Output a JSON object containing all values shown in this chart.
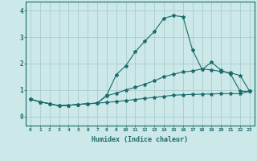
{
  "xlabel": "Humidex (Indice chaleur)",
  "bg_color": "#cce8e8",
  "grid_color": "#aacccc",
  "line_color": "#1a6b6b",
  "xlim": [
    -0.5,
    23.5
  ],
  "ylim": [
    -0.35,
    4.35
  ],
  "xticks": [
    0,
    1,
    2,
    3,
    4,
    5,
    6,
    7,
    8,
    9,
    10,
    11,
    12,
    13,
    14,
    15,
    16,
    17,
    18,
    19,
    20,
    21,
    22,
    23
  ],
  "yticks": [
    0,
    1,
    2,
    3,
    4
  ],
  "line1_x": [
    0,
    1,
    2,
    3,
    4,
    5,
    6,
    7,
    8,
    9,
    10,
    11,
    12,
    13,
    14,
    15,
    16,
    17,
    18,
    19,
    20,
    21,
    22,
    23
  ],
  "line1_y": [
    0.65,
    0.55,
    0.48,
    0.4,
    0.42,
    0.45,
    0.48,
    0.5,
    0.8,
    1.58,
    1.92,
    2.45,
    2.85,
    3.22,
    3.72,
    3.82,
    3.78,
    2.52,
    1.78,
    2.05,
    1.75,
    1.6,
    0.95,
    0.95
  ],
  "line2_x": [
    0,
    1,
    2,
    3,
    4,
    5,
    6,
    7,
    8,
    9,
    10,
    11,
    12,
    13,
    14,
    15,
    16,
    17,
    18,
    19,
    20,
    21,
    22,
    23
  ],
  "line2_y": [
    0.65,
    0.55,
    0.48,
    0.4,
    0.42,
    0.45,
    0.48,
    0.5,
    0.78,
    0.88,
    1.0,
    1.1,
    1.22,
    1.35,
    1.5,
    1.6,
    1.68,
    1.72,
    1.8,
    1.76,
    1.7,
    1.65,
    1.55,
    0.95
  ],
  "line3_x": [
    0,
    1,
    2,
    3,
    4,
    5,
    6,
    7,
    8,
    9,
    10,
    11,
    12,
    13,
    14,
    15,
    16,
    17,
    18,
    19,
    20,
    21,
    22,
    23
  ],
  "line3_y": [
    0.65,
    0.55,
    0.48,
    0.4,
    0.42,
    0.45,
    0.48,
    0.5,
    0.53,
    0.56,
    0.6,
    0.64,
    0.68,
    0.72,
    0.76,
    0.8,
    0.82,
    0.83,
    0.84,
    0.85,
    0.86,
    0.86,
    0.86,
    0.95
  ]
}
